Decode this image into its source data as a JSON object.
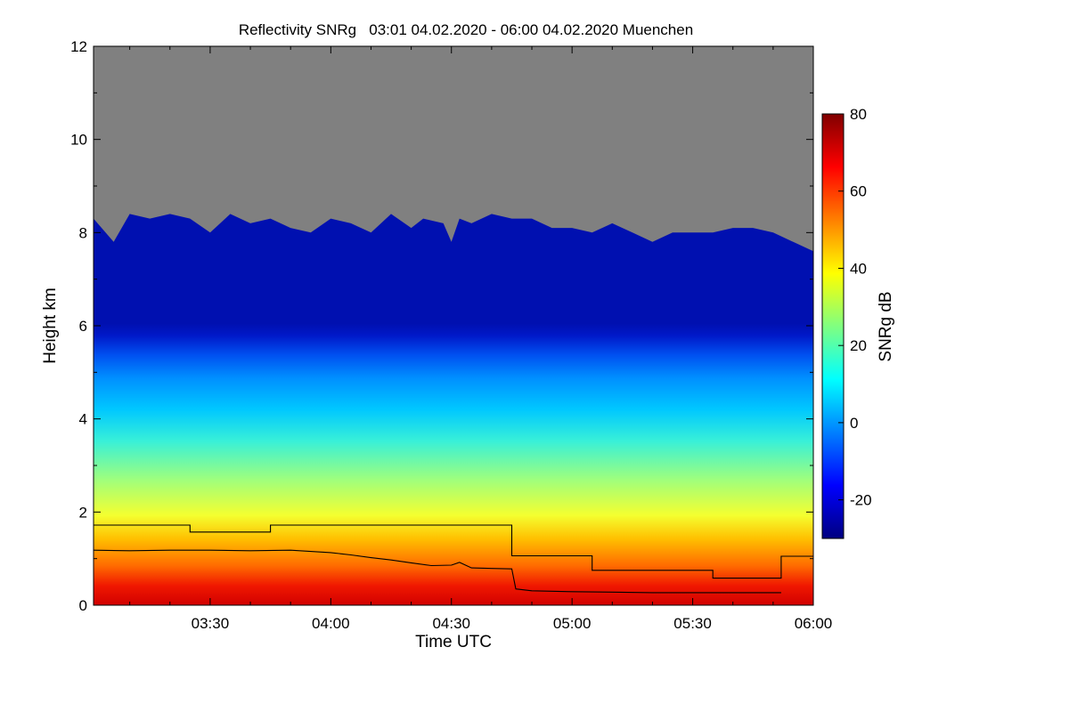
{
  "chart_data": {
    "type": "heatmap",
    "title": "Reflectivity SNRg   03:01 04.02.2020 - 06:00 04.02.2020 Muenchen",
    "xlabel": "Time UTC",
    "ylabel": "Height km",
    "xlim": [
      "03:01",
      "06:00"
    ],
    "ylim": [
      0,
      12
    ],
    "x_ticks": [
      {
        "label": "03:30",
        "minutes": 210
      },
      {
        "label": "04:00",
        "minutes": 240
      },
      {
        "label": "04:30",
        "minutes": 270
      },
      {
        "label": "05:00",
        "minutes": 300
      },
      {
        "label": "05:30",
        "minutes": 330
      },
      {
        "label": "06:00",
        "minutes": 360
      }
    ],
    "y_ticks": [
      "0",
      "2",
      "4",
      "6",
      "8",
      "10",
      "12"
    ],
    "colorbar": {
      "label": "SNRg dB",
      "range": [
        -30,
        80
      ],
      "ticks": [
        "-20",
        "0",
        "20",
        "40",
        "60",
        "80"
      ],
      "colors": [
        "#000080",
        "#0000ff",
        "#0080ff",
        "#00ffff",
        "#80ff80",
        "#ffff00",
        "#ff8000",
        "#ff0000",
        "#800000"
      ],
      "no_data_color": "#808080"
    },
    "echo_top_km": [
      [
        181,
        8.3
      ],
      [
        186,
        7.8
      ],
      [
        190,
        8.4
      ],
      [
        195,
        8.3
      ],
      [
        200,
        8.4
      ],
      [
        205,
        8.3
      ],
      [
        210,
        8.0
      ],
      [
        215,
        8.4
      ],
      [
        220,
        8.2
      ],
      [
        225,
        8.3
      ],
      [
        230,
        8.1
      ],
      [
        235,
        8.0
      ],
      [
        240,
        8.3
      ],
      [
        245,
        8.2
      ],
      [
        250,
        8.0
      ],
      [
        255,
        8.4
      ],
      [
        260,
        8.1
      ],
      [
        263,
        8.3
      ],
      [
        268,
        8.2
      ],
      [
        270,
        7.8
      ],
      [
        272,
        8.3
      ],
      [
        275,
        8.2
      ],
      [
        280,
        8.4
      ],
      [
        285,
        8.3
      ],
      [
        290,
        8.3
      ],
      [
        295,
        8.1
      ],
      [
        300,
        8.1
      ],
      [
        305,
        8.0
      ],
      [
        310,
        8.2
      ],
      [
        315,
        8.0
      ],
      [
        320,
        7.8
      ],
      [
        325,
        8.0
      ],
      [
        330,
        8.0
      ],
      [
        335,
        8.0
      ],
      [
        340,
        8.1
      ],
      [
        345,
        8.1
      ],
      [
        350,
        8.0
      ],
      [
        355,
        7.8
      ],
      [
        360,
        7.6
      ]
    ],
    "series": [
      {
        "style": "step",
        "x": [
          181,
          205,
          205,
          225,
          225,
          285,
          285,
          305,
          305,
          335,
          335,
          352,
          352,
          360
        ],
        "y": [
          1.72,
          1.72,
          1.57,
          1.57,
          1.72,
          1.72,
          1.06,
          1.06,
          0.75,
          0.75,
          0.58,
          0.58,
          1.05,
          1.05
        ]
      },
      {
        "style": "line",
        "x": [
          181,
          190,
          200,
          210,
          220,
          230,
          240,
          245,
          250,
          255,
          260,
          265,
          270,
          272,
          275,
          280,
          285,
          286,
          290,
          300,
          310,
          320,
          330,
          340,
          350,
          352
        ],
        "y": [
          1.18,
          1.17,
          1.18,
          1.18,
          1.17,
          1.18,
          1.13,
          1.08,
          1.02,
          0.97,
          0.91,
          0.85,
          0.86,
          0.92,
          0.8,
          0.79,
          0.78,
          0.35,
          0.31,
          0.29,
          0.28,
          0.27,
          0.27,
          0.27,
          0.27,
          0.27
        ]
      }
    ]
  }
}
